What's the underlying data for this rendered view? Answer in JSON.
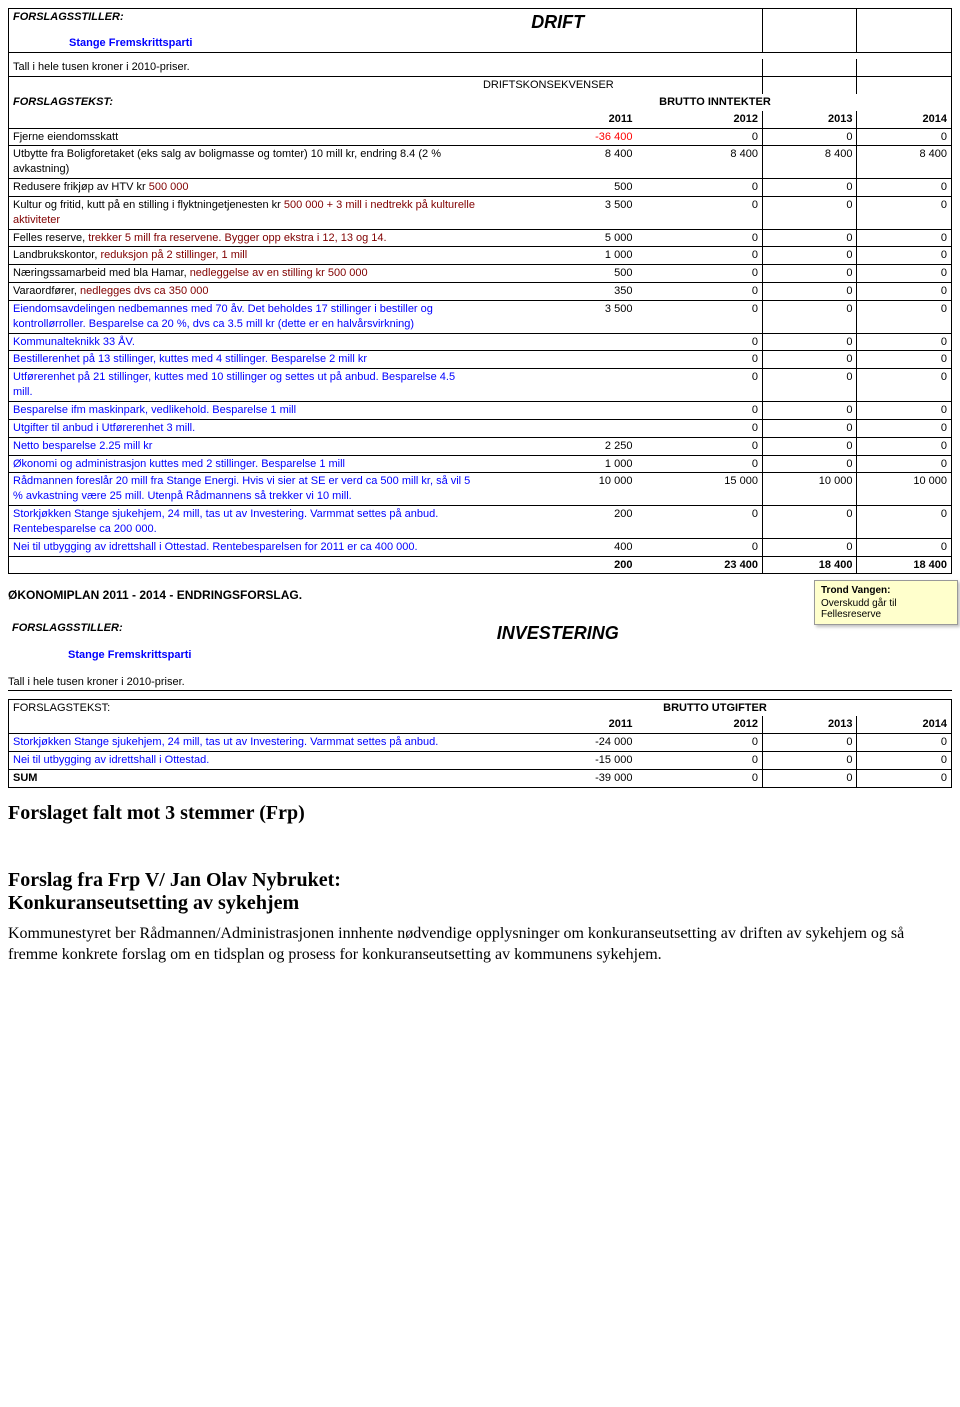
{
  "drift": {
    "forslagsstiller_label": "FORSLAGSSTILLER:",
    "party": "Stange Fremskrittsparti",
    "section_title": "DRIFT",
    "tall_note": "Tall i hele tusen kroner i 2010-priser.",
    "driftskonsekvenser": "DRIFTSKONSEKVENSER",
    "forslagstekst_label": "FORSLAGSTEKST:",
    "brutto_inntekter": "BRUTTO INNTEKTER",
    "years": [
      "2011",
      "2012",
      "2013",
      "2014"
    ],
    "rows": [
      {
        "label": "Fjerne eiendomsskatt",
        "vals": [
          "-36 400",
          "0",
          "0",
          "0"
        ],
        "color": "#ff0000",
        "label_color": "#000"
      },
      {
        "label": "Utbytte fra Boligforetaket (eks salg av boligmasse og tomter) 10 mill kr, endring 8.4 (2 % avkastning)",
        "vals": [
          "8 400",
          "8 400",
          "8 400",
          "8 400"
        ],
        "label_color": "#000"
      },
      {
        "label": "Redusere frikjøp av HTV kr 500 000",
        "label_text_before": "Redusere frikjøp av HTV kr ",
        "label_text_red": "500 000",
        "vals": [
          "500",
          "0",
          "0",
          "0"
        ]
      },
      {
        "label": "Kultur og fritid, kutt på en stilling i flyktningetjenesten kr 500 000 + 3 mill i nedtrekk på kulturelle aktiviteter",
        "label_text_before": "Kultur og fritid, kutt på en stilling i flyktningetjenesten kr ",
        "label_text_red": "500 000 + 3 mill i nedtrekk på kulturelle aktiviteter",
        "vals": [
          "3 500",
          "0",
          "0",
          "0"
        ]
      },
      {
        "label": "Felles reserve, trekker 5 mill fra reservene. Bygger opp ekstra i 12, 13 og 14.",
        "label_text_before": "Felles reserve, ",
        "label_text_red": "trekker 5 mill fra reservene. Bygger opp ekstra i 12, 13 og 14.",
        "vals": [
          "5 000",
          "0",
          "0",
          "0"
        ]
      },
      {
        "label": "Landbrukskontor, reduksjon på 2 stillinger, 1 mill",
        "label_text_before": "Landbrukskontor, ",
        "label_text_red": "reduksjon på 2 stillinger, 1 mill",
        "vals": [
          "1 000",
          "0",
          "0",
          "0"
        ]
      },
      {
        "label": "Næringssamarbeid med bla Hamar, nedleggelse av en stilling kr 500 000",
        "label_text_before": "Næringssamarbeid med bla Hamar, ",
        "label_text_red": "nedleggelse av en stilling kr 500 000",
        "vals": [
          "500",
          "0",
          "0",
          "0"
        ]
      },
      {
        "label": "Varaordfører, nedlegges dvs ca 350 000",
        "label_text_before": "Varaordfører, ",
        "label_text_red": "nedlegges dvs ca 350 000",
        "vals": [
          "350",
          "0",
          "0",
          "0"
        ]
      },
      {
        "label": "Eiendomsavdelingen nedbemannes med 70 åv. Det beholdes 17 stillinger i bestiller og kontrollørroller. Besparelse ca 20 %, dvs ca 3.5 mill kr (dette er en halvårsvirkning)",
        "vals": [
          "3 500",
          "0",
          "0",
          "0"
        ],
        "link": true
      },
      {
        "label": "Kommunalteknikk 33 ÅV.",
        "vals": [
          "",
          "0",
          "0",
          "0"
        ],
        "link": true
      },
      {
        "label": "Bestillerenhet på 13 stillinger, kuttes med 4 stillinger. Besparelse 2 mill kr",
        "vals": [
          "",
          "0",
          "0",
          "0"
        ],
        "link": true
      },
      {
        "label": "Utførerenhet på 21 stillinger, kuttes med 10 stillinger og settes ut på anbud. Besparelse 4.5 mill.",
        "vals": [
          "",
          "0",
          "0",
          "0"
        ],
        "link": true
      },
      {
        "label": "Besparelse ifm maskinpark, vedlikehold. Besparelse 1 mill",
        "vals": [
          "",
          "0",
          "0",
          "0"
        ],
        "link": true
      },
      {
        "label": "Utgifter til anbud i Utførerenhet 3 mill.",
        "vals": [
          "",
          "0",
          "0",
          "0"
        ],
        "link": true
      },
      {
        "label": "Netto besparelse 2.25 mill kr",
        "vals": [
          "2 250",
          "0",
          "0",
          "0"
        ],
        "link": true
      },
      {
        "label": "Økonomi og administrasjon kuttes med 2 stillinger. Besparelse 1 mill",
        "vals": [
          "1 000",
          "0",
          "0",
          "0"
        ],
        "link": true
      },
      {
        "label": "Rådmannen foreslår 20 mill fra Stange Energi. Hvis vi sier at SE er verd ca 500 mill kr, så vil 5 % avkastning være 25 mill. Utenpå Rådmannens så trekker vi 10 mill.",
        "vals": [
          "10 000",
          "15 000",
          "10 000",
          "10 000"
        ],
        "link": true
      },
      {
        "label": "Storkjøkken Stange sjukehjem, 24 mill, tas ut av Investering. Varmmat settes på anbud. Rentebesparelse ca 200 000.",
        "vals": [
          "200",
          "0",
          "0",
          "0"
        ],
        "link": true
      },
      {
        "label": "Nei til utbygging av idrettshall i Ottestad. Rentebesparelsen for 2011 er ca 400 000.",
        "vals": [
          "400",
          "0",
          "0",
          "0"
        ],
        "link": true
      }
    ],
    "totals": [
      "200",
      "23 400",
      "18 400",
      "18 400"
    ]
  },
  "okonomiplan_header": "ØKONOMIPLAN 2011 - 2014 - ENDRINGSFORSLAG.",
  "note": {
    "title": "Trond Vangen:",
    "body": "Overskudd går til Fellesreserve"
  },
  "investering": {
    "forslagsstiller_label": "FORSLAGSSTILLER:",
    "party": "Stange Fremskrittsparti",
    "section_title": "INVESTERING",
    "tall_note": "Tall i hele tusen kroner i 2010-priser.",
    "forslagstekst_label": "FORSLAGSTEKST:",
    "brutto_utgifter": "BRUTTO UTGIFTER",
    "years": [
      "2011",
      "2012",
      "2013",
      "2014"
    ],
    "rows": [
      {
        "label": "Storkjøkken Stange sjukehjem, 24 mill, tas ut av Investering. Varmmat settes på anbud.",
        "vals": [
          "-24 000",
          "0",
          "0",
          "0"
        ],
        "link": true
      },
      {
        "label": "Nei til utbygging av idrettshall i Ottestad.",
        "vals": [
          "-15 000",
          "0",
          "0",
          "0"
        ],
        "link": true
      }
    ],
    "sum_label": "SUM",
    "sum_vals": [
      "-39 000",
      "0",
      "0",
      "0"
    ]
  },
  "vote_result": "Forslaget falt mot 3 stemmer (Frp)",
  "proposal_title_line1": "Forslag fra Frp V/ Jan Olav Nybruket:",
  "proposal_title_line2": "Konkuransetutsetting av sykehjem",
  "proposal_title_line2_fix": "Konkuranseutsetting av sykehjem",
  "proposal_body": "Kommunestyret ber Rådmannen/Administrasjonen innhente nødvendige opplysninger om konkuranseutsetting av driften av sykehjem og så fremme konkrete forslag om en tidsplan og prosess for konkuranseutsetting av kommunens sykehjem."
}
